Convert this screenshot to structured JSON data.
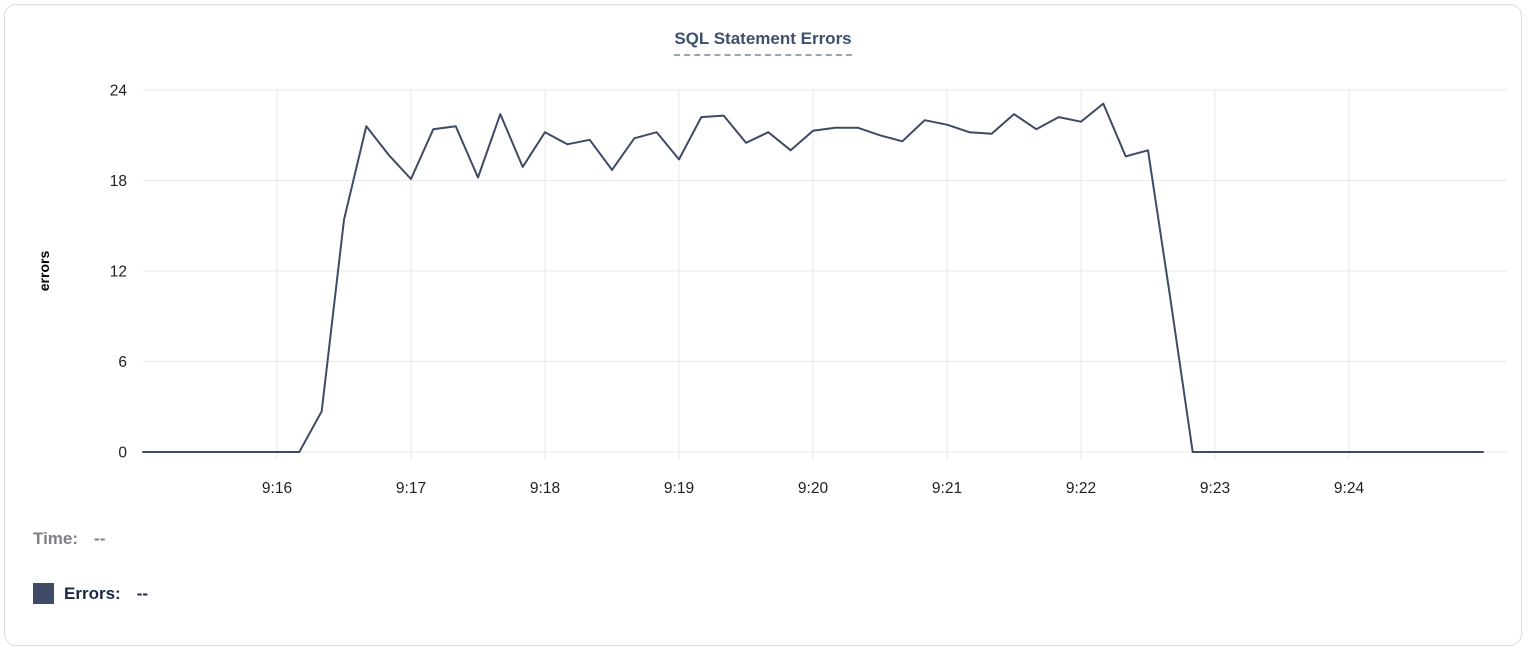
{
  "chart_data": {
    "type": "line",
    "title": "SQL Statement Errors",
    "xlabel": "",
    "ylabel": "errors",
    "x_tick_labels": [
      "9:16",
      "9:17",
      "9:18",
      "9:19",
      "9:20",
      "9:21",
      "9:22",
      "9:23",
      "9:24"
    ],
    "y_ticks": [
      0,
      6,
      12,
      18,
      24
    ],
    "ylim": [
      0,
      24
    ],
    "x_range": [
      "9:15:00",
      "9:25:00"
    ],
    "grid": true,
    "legend_position": "bottom-left",
    "line_color": "#3e4a66",
    "grid_color": "#e9e9e9",
    "series": [
      {
        "name": "Errors",
        "color": "#3e4a66",
        "points": [
          [
            "9:15:00",
            0
          ],
          [
            "9:15:10",
            0
          ],
          [
            "9:15:20",
            0
          ],
          [
            "9:15:30",
            0
          ],
          [
            "9:15:40",
            0
          ],
          [
            "9:15:50",
            0
          ],
          [
            "9:16:00",
            0
          ],
          [
            "9:16:10",
            0
          ],
          [
            "9:16:20",
            2.7
          ],
          [
            "9:16:30",
            15.4
          ],
          [
            "9:16:40",
            21.6
          ],
          [
            "9:16:50",
            19.7
          ],
          [
            "9:17:00",
            18.1
          ],
          [
            "9:17:10",
            21.4
          ],
          [
            "9:17:20",
            21.6
          ],
          [
            "9:17:30",
            18.2
          ],
          [
            "9:17:40",
            22.4
          ],
          [
            "9:17:50",
            18.9
          ],
          [
            "9:18:00",
            21.2
          ],
          [
            "9:18:10",
            20.4
          ],
          [
            "9:18:20",
            20.7
          ],
          [
            "9:18:30",
            18.7
          ],
          [
            "9:18:40",
            20.8
          ],
          [
            "9:18:50",
            21.2
          ],
          [
            "9:19:00",
            19.4
          ],
          [
            "9:19:10",
            22.2
          ],
          [
            "9:19:20",
            22.3
          ],
          [
            "9:19:30",
            20.5
          ],
          [
            "9:19:40",
            21.2
          ],
          [
            "9:19:50",
            20.0
          ],
          [
            "9:20:00",
            21.3
          ],
          [
            "9:20:10",
            21.5
          ],
          [
            "9:20:20",
            21.5
          ],
          [
            "9:20:30",
            21.0
          ],
          [
            "9:20:40",
            20.6
          ],
          [
            "9:20:50",
            22.0
          ],
          [
            "9:21:00",
            21.7
          ],
          [
            "9:21:10",
            21.2
          ],
          [
            "9:21:20",
            21.1
          ],
          [
            "9:21:30",
            22.4
          ],
          [
            "9:21:40",
            21.4
          ],
          [
            "9:21:50",
            22.2
          ],
          [
            "9:22:00",
            21.9
          ],
          [
            "9:22:10",
            23.1
          ],
          [
            "9:22:20",
            19.6
          ],
          [
            "9:22:30",
            20.0
          ],
          [
            "9:22:40",
            10.2
          ],
          [
            "9:22:50",
            0
          ],
          [
            "9:23:00",
            0
          ],
          [
            "9:23:10",
            0
          ],
          [
            "9:23:20",
            0
          ],
          [
            "9:23:30",
            0
          ],
          [
            "9:23:40",
            0
          ],
          [
            "9:23:50",
            0
          ],
          [
            "9:24:00",
            0
          ],
          [
            "9:24:10",
            0
          ],
          [
            "9:24:20",
            0
          ],
          [
            "9:24:30",
            0
          ],
          [
            "9:24:40",
            0
          ],
          [
            "9:24:50",
            0
          ],
          [
            "9:25:00",
            0
          ]
        ]
      }
    ]
  },
  "tooltip": {
    "time_label": "Time:",
    "time_value": "--",
    "errors_label": "Errors:",
    "errors_value": "--",
    "swatch_color": "#3e4a66"
  }
}
